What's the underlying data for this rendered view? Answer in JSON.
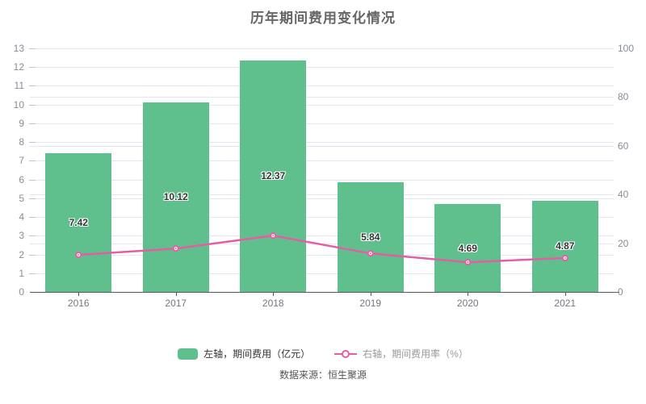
{
  "title": "历年期间费用变化情况",
  "source": "数据来源：恒生聚源",
  "colors": {
    "bar": "#5fc08d",
    "line": "#e45ea4",
    "grid": "#e1e6f0",
    "y_tick": "#bcc6d9",
    "axis": "#54575c",
    "axis_label": "#878c96",
    "bar_label": "#333333",
    "legend_bar_text": "#333333",
    "legend_line_text": "#999999",
    "source_text": "#555555",
    "title_text": "#666666",
    "marker_fill": "#ffffff"
  },
  "legend": {
    "items": [
      {
        "label": "左轴，期间费用（亿元）",
        "type": "bar"
      },
      {
        "label": "右轴，期间费用率（%）",
        "type": "line"
      }
    ]
  },
  "chart_data": {
    "type": "bar+line",
    "title": "历年期间费用变化情况",
    "categories": [
      "2016",
      "2017",
      "2018",
      "2019",
      "2020",
      "2021"
    ],
    "series": [
      {
        "name": "左轴，期间费用（亿元）",
        "type": "bar",
        "axis": "left",
        "values": [
          7.42,
          10.12,
          12.37,
          5.84,
          4.69,
          4.87
        ],
        "labels": [
          "7.42",
          "10.12",
          "12.37",
          "5.84",
          "4.69",
          "4.87"
        ]
      },
      {
        "name": "右轴，期间费用率（%）",
        "type": "line",
        "axis": "right",
        "values": [
          15.2,
          17.8,
          23.1,
          15.8,
          12.2,
          13.9
        ]
      }
    ],
    "left_axis": {
      "min": 0,
      "max": 13,
      "step": 1,
      "ticks": [
        0,
        1,
        2,
        3,
        4,
        5,
        6,
        7,
        8,
        9,
        10,
        11,
        12,
        13
      ]
    },
    "right_axis": {
      "min": 0,
      "max": 100,
      "step": 20,
      "ticks": [
        0,
        20,
        40,
        60,
        80,
        100
      ]
    },
    "grid": true,
    "legend_position": "bottom"
  }
}
